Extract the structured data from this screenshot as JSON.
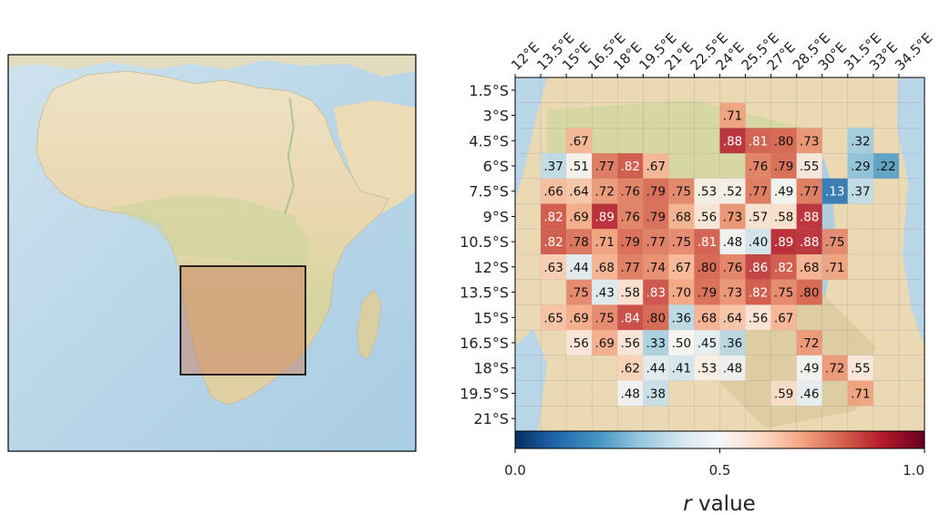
{
  "chart_data": {
    "type": "heatmap",
    "left_panel": "map of Africa with highlighted study region",
    "x_tick_labels": [
      "12°E",
      "13.5°E",
      "15°E",
      "16.5°E",
      "18°E",
      "19.5°E",
      "21°E",
      "22.5°E",
      "24°E",
      "25.5°E",
      "27°E",
      "28.5°E",
      "30°E",
      "31.5°E",
      "33°E",
      "34.5°E"
    ],
    "y_tick_labels": [
      "1.5°S",
      "3°S",
      "4.5°S",
      "6°S",
      "7.5°S",
      "9°S",
      "10.5°S",
      "12°S",
      "13.5°S",
      "15°S",
      "16.5°S",
      "18°S",
      "19.5°S",
      "21°S"
    ],
    "columns": 16,
    "rows": 14,
    "cells": [
      {
        "row": 1,
        "col": 8,
        "value": 0.71
      },
      {
        "row": 2,
        "col": 2,
        "value": 0.67
      },
      {
        "row": 2,
        "col": 8,
        "value": 0.88
      },
      {
        "row": 2,
        "col": 9,
        "value": 0.81
      },
      {
        "row": 2,
        "col": 10,
        "value": 0.8
      },
      {
        "row": 2,
        "col": 11,
        "value": 0.73
      },
      {
        "row": 2,
        "col": 13,
        "value": 0.32
      },
      {
        "row": 3,
        "col": 1,
        "value": 0.37
      },
      {
        "row": 3,
        "col": 2,
        "value": 0.51
      },
      {
        "row": 3,
        "col": 3,
        "value": 0.77
      },
      {
        "row": 3,
        "col": 4,
        "value": 0.82
      },
      {
        "row": 3,
        "col": 5,
        "value": 0.67
      },
      {
        "row": 3,
        "col": 9,
        "value": 0.76
      },
      {
        "row": 3,
        "col": 10,
        "value": 0.79
      },
      {
        "row": 3,
        "col": 11,
        "value": 0.55
      },
      {
        "row": 3,
        "col": 13,
        "value": 0.29
      },
      {
        "row": 3,
        "col": 14,
        "value": 0.22
      },
      {
        "row": 4,
        "col": 1,
        "value": 0.66
      },
      {
        "row": 4,
        "col": 2,
        "value": 0.64
      },
      {
        "row": 4,
        "col": 3,
        "value": 0.72
      },
      {
        "row": 4,
        "col": 4,
        "value": 0.76
      },
      {
        "row": 4,
        "col": 5,
        "value": 0.79
      },
      {
        "row": 4,
        "col": 6,
        "value": 0.75
      },
      {
        "row": 4,
        "col": 7,
        "value": 0.53
      },
      {
        "row": 4,
        "col": 8,
        "value": 0.52
      },
      {
        "row": 4,
        "col": 9,
        "value": 0.77
      },
      {
        "row": 4,
        "col": 10,
        "value": 0.49
      },
      {
        "row": 4,
        "col": 11,
        "value": 0.77
      },
      {
        "row": 4,
        "col": 12,
        "value": 0.13
      },
      {
        "row": 4,
        "col": 13,
        "value": 0.37
      },
      {
        "row": 5,
        "col": 1,
        "value": 0.82
      },
      {
        "row": 5,
        "col": 2,
        "value": 0.69
      },
      {
        "row": 5,
        "col": 3,
        "value": 0.89
      },
      {
        "row": 5,
        "col": 4,
        "value": 0.76
      },
      {
        "row": 5,
        "col": 5,
        "value": 0.79
      },
      {
        "row": 5,
        "col": 6,
        "value": 0.68
      },
      {
        "row": 5,
        "col": 7,
        "value": 0.56
      },
      {
        "row": 5,
        "col": 8,
        "value": 0.73
      },
      {
        "row": 5,
        "col": 9,
        "value": 0.57
      },
      {
        "row": 5,
        "col": 10,
        "value": 0.58
      },
      {
        "row": 5,
        "col": 11,
        "value": 0.88
      },
      {
        "row": 6,
        "col": 1,
        "value": 0.82
      },
      {
        "row": 6,
        "col": 2,
        "value": 0.78
      },
      {
        "row": 6,
        "col": 3,
        "value": 0.71
      },
      {
        "row": 6,
        "col": 4,
        "value": 0.79
      },
      {
        "row": 6,
        "col": 5,
        "value": 0.77
      },
      {
        "row": 6,
        "col": 6,
        "value": 0.75
      },
      {
        "row": 6,
        "col": 7,
        "value": 0.81
      },
      {
        "row": 6,
        "col": 8,
        "value": 0.48
      },
      {
        "row": 6,
        "col": 9,
        "value": 0.4
      },
      {
        "row": 6,
        "col": 10,
        "value": 0.89
      },
      {
        "row": 6,
        "col": 11,
        "value": 0.88
      },
      {
        "row": 6,
        "col": 12,
        "value": 0.75
      },
      {
        "row": 7,
        "col": 1,
        "value": 0.63
      },
      {
        "row": 7,
        "col": 2,
        "value": 0.44
      },
      {
        "row": 7,
        "col": 3,
        "value": 0.68
      },
      {
        "row": 7,
        "col": 4,
        "value": 0.77
      },
      {
        "row": 7,
        "col": 5,
        "value": 0.74
      },
      {
        "row": 7,
        "col": 6,
        "value": 0.67
      },
      {
        "row": 7,
        "col": 7,
        "value": 0.8
      },
      {
        "row": 7,
        "col": 8,
        "value": 0.76
      },
      {
        "row": 7,
        "col": 9,
        "value": 0.86
      },
      {
        "row": 7,
        "col": 10,
        "value": 0.82
      },
      {
        "row": 7,
        "col": 11,
        "value": 0.68
      },
      {
        "row": 7,
        "col": 12,
        "value": 0.71
      },
      {
        "row": 8,
        "col": 2,
        "value": 0.75
      },
      {
        "row": 8,
        "col": 3,
        "value": 0.43
      },
      {
        "row": 8,
        "col": 4,
        "value": 0.58
      },
      {
        "row": 8,
        "col": 5,
        "value": 0.83
      },
      {
        "row": 8,
        "col": 6,
        "value": 0.7
      },
      {
        "row": 8,
        "col": 7,
        "value": 0.79
      },
      {
        "row": 8,
        "col": 8,
        "value": 0.73
      },
      {
        "row": 8,
        "col": 9,
        "value": 0.82
      },
      {
        "row": 8,
        "col": 10,
        "value": 0.75
      },
      {
        "row": 8,
        "col": 11,
        "value": 0.8
      },
      {
        "row": 9,
        "col": 1,
        "value": 0.65
      },
      {
        "row": 9,
        "col": 2,
        "value": 0.69
      },
      {
        "row": 9,
        "col": 3,
        "value": 0.75
      },
      {
        "row": 9,
        "col": 4,
        "value": 0.84
      },
      {
        "row": 9,
        "col": 5,
        "value": 0.8
      },
      {
        "row": 9,
        "col": 6,
        "value": 0.36
      },
      {
        "row": 9,
        "col": 7,
        "value": 0.68
      },
      {
        "row": 9,
        "col": 8,
        "value": 0.64
      },
      {
        "row": 9,
        "col": 9,
        "value": 0.56
      },
      {
        "row": 9,
        "col": 10,
        "value": 0.67
      },
      {
        "row": 10,
        "col": 2,
        "value": 0.56
      },
      {
        "row": 10,
        "col": 3,
        "value": 0.69
      },
      {
        "row": 10,
        "col": 4,
        "value": 0.56
      },
      {
        "row": 10,
        "col": 5,
        "value": 0.33
      },
      {
        "row": 10,
        "col": 6,
        "value": 0.5
      },
      {
        "row": 10,
        "col": 7,
        "value": 0.45
      },
      {
        "row": 10,
        "col": 8,
        "value": 0.36
      },
      {
        "row": 10,
        "col": 11,
        "value": 0.72
      },
      {
        "row": 11,
        "col": 4,
        "value": 0.62
      },
      {
        "row": 11,
        "col": 5,
        "value": 0.44
      },
      {
        "row": 11,
        "col": 6,
        "value": 0.41
      },
      {
        "row": 11,
        "col": 7,
        "value": 0.53
      },
      {
        "row": 11,
        "col": 8,
        "value": 0.48
      },
      {
        "row": 11,
        "col": 11,
        "value": 0.49
      },
      {
        "row": 11,
        "col": 12,
        "value": 0.72
      },
      {
        "row": 11,
        "col": 13,
        "value": 0.55
      },
      {
        "row": 12,
        "col": 4,
        "value": 0.48
      },
      {
        "row": 12,
        "col": 5,
        "value": 0.38
      },
      {
        "row": 12,
        "col": 10,
        "value": 0.59
      },
      {
        "row": 12,
        "col": 11,
        "value": 0.46
      },
      {
        "row": 12,
        "col": 13,
        "value": 0.71
      }
    ],
    "colormap": "RdBu_r",
    "colorbar": {
      "range": [
        0,
        1
      ],
      "ticks": [
        "0.0",
        "0.5",
        "1.0"
      ],
      "label_italic": "r",
      "label_rest": " value"
    }
  }
}
